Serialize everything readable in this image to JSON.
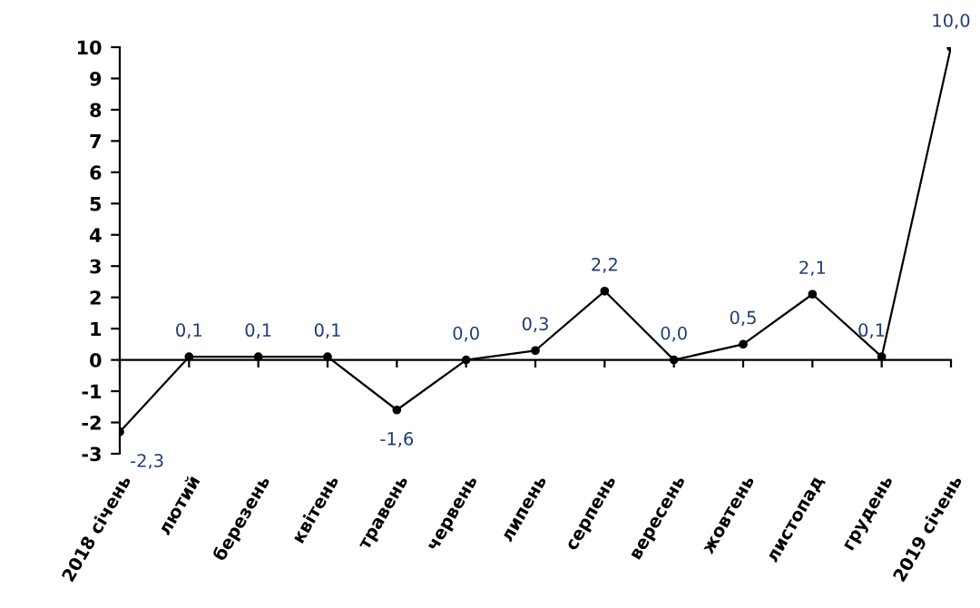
{
  "chart_data": {
    "type": "line",
    "categories": [
      "2018 січень",
      "лютий",
      "березень",
      "квітень",
      "травень",
      "червень",
      "липень",
      "серпень",
      "вересень",
      "жовтень",
      "листопад",
      "грудень",
      "2019 січень"
    ],
    "series": [
      {
        "color": "#000000",
        "values": [
          -2.3,
          0.1,
          0.1,
          0.1,
          -1.6,
          0.0,
          0.3,
          2.2,
          0.0,
          0.5,
          2.1,
          0.1,
          10.0
        ],
        "value_labels": [
          "-2,3",
          "0,1",
          "0,1",
          "0,1",
          "-1,6",
          "0,0",
          "0,3",
          "2,2",
          "0,0",
          "0,5",
          "2,1",
          "0,1",
          "10,0"
        ]
      }
    ],
    "ylim": [
      -3,
      10
    ],
    "yticks": [
      -3,
      -2,
      -1,
      0,
      1,
      2,
      3,
      4,
      5,
      6,
      7,
      8,
      9,
      10
    ],
    "marker": "circle",
    "line_style": "solid",
    "legend": false
  }
}
